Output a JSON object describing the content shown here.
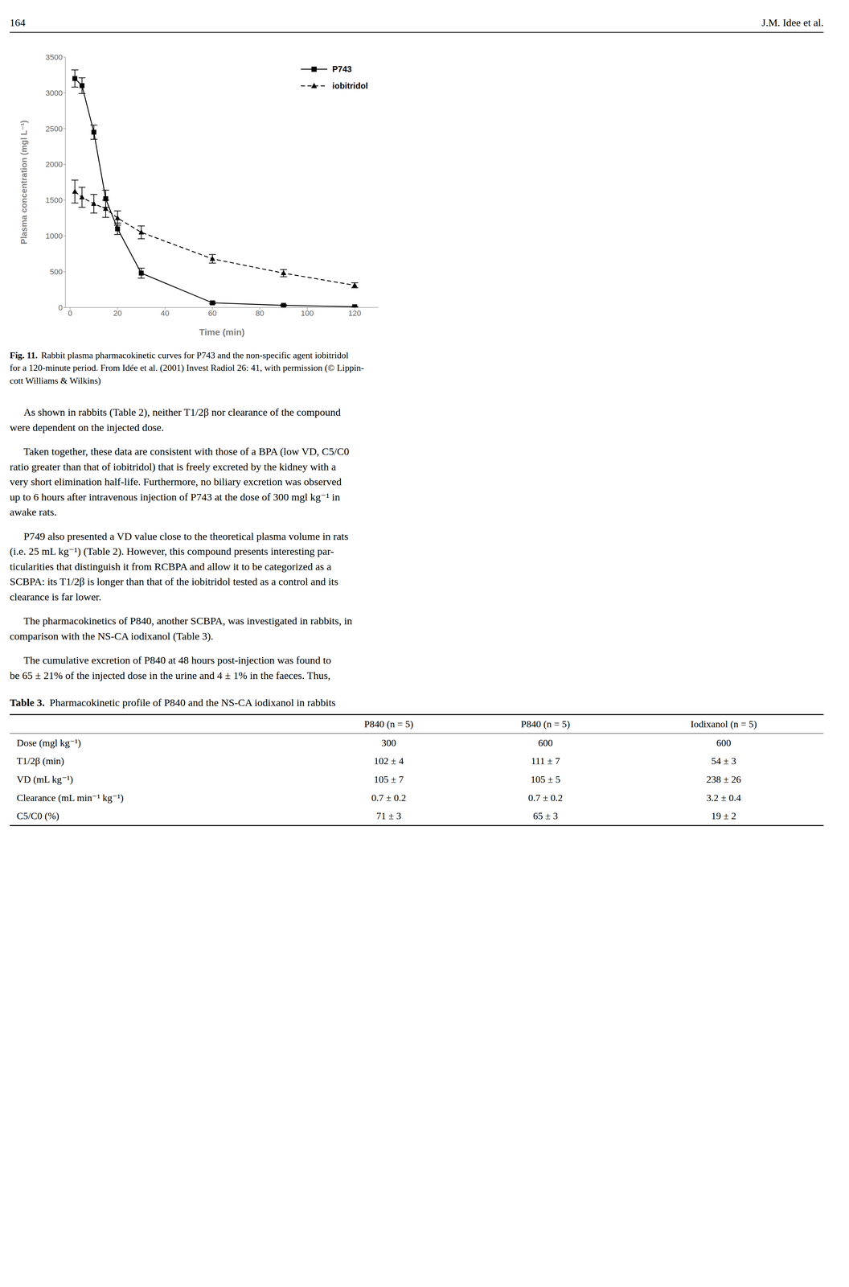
{
  "chart_data": {
    "type": "line",
    "xlabel": "Time (min)",
    "ylabel": "Plasma concentration (mgl L⁻¹)",
    "xlim": [
      -2,
      130
    ],
    "ylim": [
      0,
      3500
    ],
    "xticks": [
      0,
      20,
      40,
      60,
      80,
      100,
      120
    ],
    "yticks": [
      0,
      500,
      1000,
      1500,
      2000,
      2500,
      3000,
      3500
    ],
    "grid": false,
    "legend": "upper right",
    "x": [
      2,
      5,
      10,
      15,
      20,
      30,
      60,
      90,
      120
    ],
    "series": [
      {
        "name": "P743",
        "color": "#000000",
        "marker": "square",
        "line_style": "solid",
        "values": [
          3200,
          3100,
          2450,
          1520,
          1100,
          480,
          65,
          30,
          10
        ],
        "errors": [
          120,
          110,
          100,
          120,
          80,
          70,
          15,
          8,
          5
        ]
      },
      {
        "name": "iobitridol",
        "color": "#000000",
        "marker": "triangle",
        "line_style": "dashed",
        "values": [
          1620,
          1540,
          1450,
          1380,
          1250,
          1050,
          680,
          480,
          310
        ],
        "errors": [
          160,
          140,
          130,
          120,
          100,
          90,
          60,
          50,
          35
        ]
      }
    ],
    "annotations": [
      "164",
      "J.M. Idee et al.",
      "Fig. 11.",
      "Rabbit plasma pharmacokinetic curves for P743 and the non-specific agent iobitridol\nfor a 120-minute period. From Idée et al. (2001) Invest Radiol 26: 41, with permission (© Lippin-\ncott Williams & Wilkins)",
      "As shown in rabbits (Table 2), neither T1/2β nor clearance of the compound\nwere dependent on the injected dose.",
      "Taken together, these data are consistent with those of a BPA (low VD, C5/C0\nratio greater than that of iobitridol) that is freely excreted by the kidney with a\nvery short elimination half-life. Furthermore, no biliary excretion was observed\nup to 6 hours after intravenous injection of P743 at the dose of 300 mgl kg⁻¹ in\nawake rats.",
      "P749 also presented a VD value close to the theoretical plasma volume in rats\n(i.e. 25 mL kg⁻¹) (Table 2). However, this compound presents interesting par-\nticularities that distinguish it from RCBPA and allow it to be categorized as a\nSCBPA: its T1/2β is longer than that of the iobitridol tested as a control and its\nclearance is far lower.",
      "The pharmacokinetics of P840, another SCBPA, was investigated in rabbits, in\ncomparison with the NS-CA iodixanol (Table 3).",
      "The cumulative excretion of P840 at 48 hours post-injection was found to\nbe 65 ± 21% of the injected dose in the urine and 4 ± 1% in the faeces. Thus,",
      "Table 3.",
      "Pharmacokinetic profile of P840 and the NS-CA iodixanol in rabbits"
    ],
    "table": {
      "columns": [
        "P840 (n = 5)",
        "P840 (n = 5)",
        "Iodixanol (n = 5)"
      ],
      "rows": [
        [
          "Dose (mgl kg⁻¹)",
          "300",
          "600",
          "600"
        ],
        [
          "T1/2β (min)",
          "102 ± 4",
          "111 ± 7",
          "54 ± 3"
        ],
        [
          "VD (mL kg⁻¹)",
          "105 ± 7",
          "105 ± 5",
          "238 ± 26"
        ],
        [
          "Clearance (mL min⁻¹ kg⁻¹)",
          "0.7 ± 0.2",
          "0.7 ± 0.2",
          "3.2 ± 0.4"
        ],
        [
          "C5/C0 (%)",
          "71 ± 3",
          "65 ± 3",
          "19 ± 2"
        ]
      ]
    }
  }
}
